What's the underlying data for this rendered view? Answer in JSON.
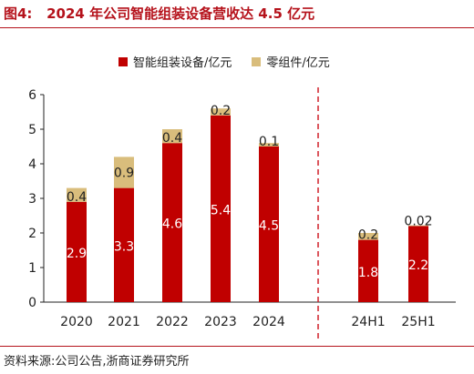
{
  "header": {
    "figure_label": "图4:",
    "title": "2024 年公司智能组装设备营收达 4.5 亿元"
  },
  "footer": {
    "source": "资料来源:公司公告,浙商证券研究所"
  },
  "colors": {
    "main": "#c00000",
    "parts": "#d9bd7c",
    "accent": "#b5121b",
    "divider": "#d0202a"
  },
  "chart_data": {
    "type": "bar",
    "stacked": true,
    "categories": [
      "2020",
      "2021",
      "2022",
      "2023",
      "2024",
      "24H1",
      "25H1"
    ],
    "series": [
      {
        "name": "智能组装设备/亿元",
        "values": [
          2.9,
          3.3,
          4.6,
          5.4,
          4.5,
          1.8,
          2.2
        ],
        "labels": [
          "2.9",
          "3.3",
          "4.6",
          "5.4",
          "4.5",
          "1.8",
          "2.2"
        ]
      },
      {
        "name": "零组件/亿元",
        "values": [
          0.4,
          0.9,
          0.4,
          0.2,
          0.1,
          0.2,
          0.02
        ],
        "labels": [
          "0.4",
          "0.9",
          "0.4",
          "0.2",
          "0.1",
          "0.2",
          "0.02"
        ]
      }
    ],
    "ylim": [
      0,
      6
    ],
    "yticks": [
      "0",
      "1",
      "2",
      "3",
      "4",
      "5",
      "6"
    ],
    "legend_position": "top",
    "grid": false,
    "divider_after_category": "2024"
  }
}
